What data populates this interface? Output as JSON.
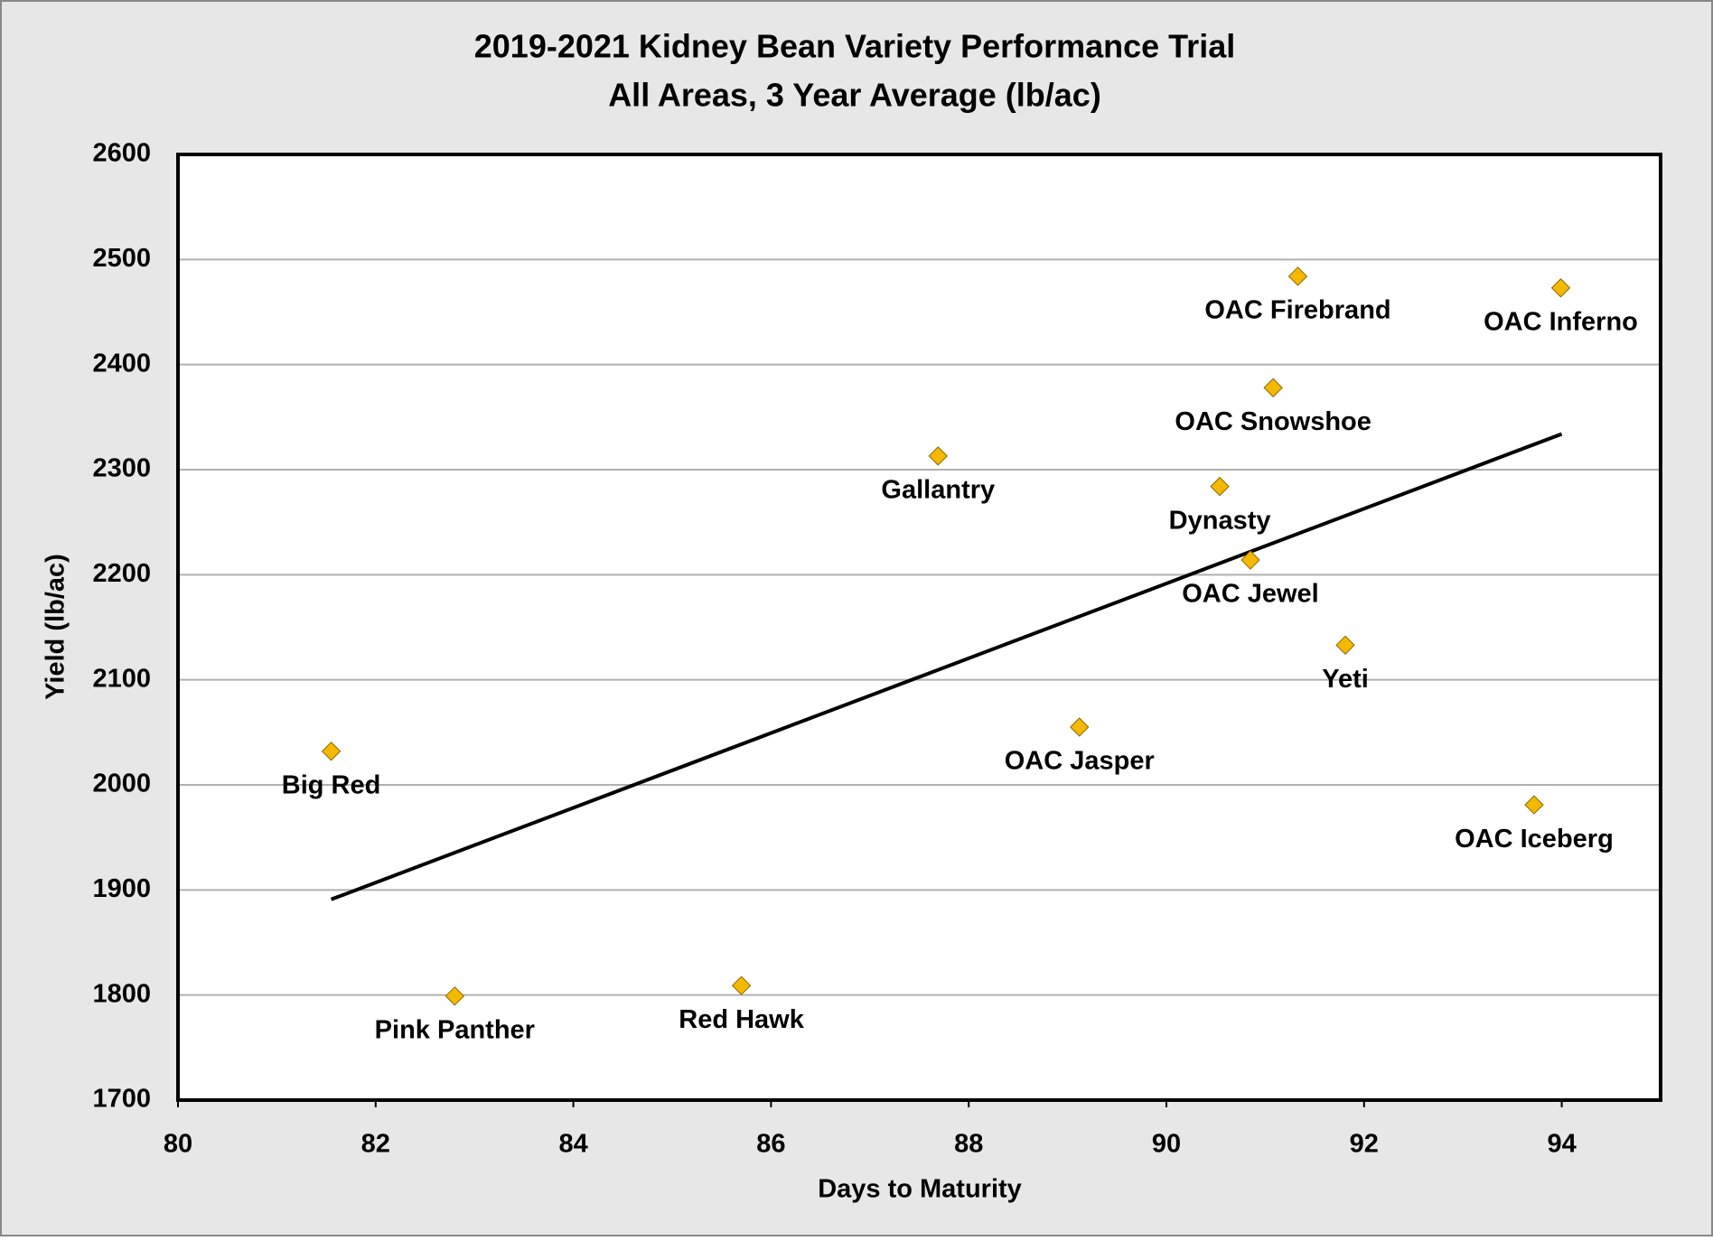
{
  "chart_data": {
    "type": "scatter",
    "title": [
      "2019-2021 Kidney Bean Variety Performance Trial",
      "All Areas, 3 Year Average (lb/ac)"
    ],
    "x_label": "Days to Maturity",
    "y_label": "Yield (lb/ac)",
    "labels": [
      "Big Red",
      "Pink Panther",
      "Red Hawk",
      "Gallantry",
      "OAC Jasper",
      "Dynasty",
      "OAC Jewel",
      "OAC Snowshoe",
      "OAC Firebrand",
      "Yeti",
      "OAC Iceberg",
      "OAC Inferno"
    ],
    "x": [
      81.55,
      82.8,
      85.7,
      87.69,
      89.12,
      90.54,
      90.85,
      91.08,
      91.33,
      91.81,
      93.72,
      93.99
    ],
    "y": [
      2032,
      1799,
      1809,
      2313,
      2055,
      2284,
      2214,
      2378,
      2484,
      2133,
      1981,
      2473
    ],
    "color": "#f5b800",
    "trend_line": {
      "x": [
        81.55,
        94
      ],
      "y": [
        1891,
        2334
      ],
      "color": "#000000"
    },
    "xlim": [
      80,
      95
    ],
    "xticks": [
      80,
      82,
      84,
      86,
      88,
      90,
      92,
      94
    ],
    "ylim": [
      1700,
      2600
    ],
    "yticks": [
      1700,
      1800,
      1900,
      2000,
      2100,
      2200,
      2300,
      2400,
      2500,
      2600
    ],
    "grid": true
  }
}
